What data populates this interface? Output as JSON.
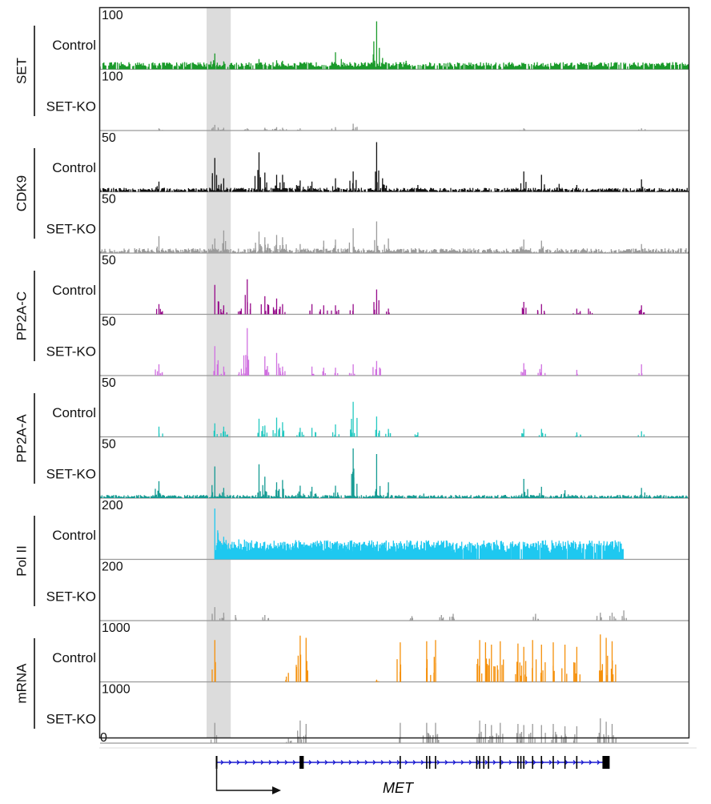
{
  "chart_data": {
    "type": "genome-browser-tracks",
    "title": "",
    "tracks": [
      {
        "group": "SET",
        "label": "Control",
        "scale": "100",
        "color": "#1a9a2a",
        "peaks": [
          [
            0.02,
            9
          ],
          [
            0.07,
            8
          ],
          [
            0.1,
            10
          ],
          [
            0.13,
            12
          ],
          [
            0.195,
            28
          ],
          [
            0.21,
            14
          ],
          [
            0.27,
            18
          ],
          [
            0.3,
            16
          ],
          [
            0.31,
            15
          ],
          [
            0.4,
            30
          ],
          [
            0.41,
            18
          ],
          [
            0.47,
            85
          ],
          [
            0.48,
            20
          ],
          [
            0.52,
            15
          ],
          [
            0.56,
            12
          ],
          [
            0.62,
            10
          ],
          [
            0.66,
            11
          ],
          [
            0.7,
            12
          ],
          [
            0.75,
            10
          ],
          [
            0.8,
            11
          ],
          [
            0.85,
            12
          ],
          [
            0.9,
            10
          ],
          [
            0.95,
            9
          ]
        ],
        "baseline": [
          3,
          9
        ]
      },
      {
        "group": "SET",
        "label": "SET-KO",
        "scale": "100",
        "color": "#9a9a9a",
        "peaks": [
          [
            0.1,
            4
          ],
          [
            0.195,
            10
          ],
          [
            0.21,
            5
          ],
          [
            0.25,
            4
          ],
          [
            0.28,
            5
          ],
          [
            0.3,
            6
          ],
          [
            0.31,
            5
          ],
          [
            0.34,
            4
          ],
          [
            0.4,
            6
          ],
          [
            0.43,
            12
          ],
          [
            0.72,
            4
          ],
          [
            0.92,
            4
          ]
        ],
        "baseline": [
          0,
          0
        ]
      },
      {
        "group": "CDK9",
        "label": "Control",
        "scale": "50",
        "color": "#111111",
        "peaks": [
          [
            0.1,
            18
          ],
          [
            0.195,
            60
          ],
          [
            0.21,
            24
          ],
          [
            0.27,
            70
          ],
          [
            0.28,
            34
          ],
          [
            0.3,
            30
          ],
          [
            0.31,
            30
          ],
          [
            0.34,
            20
          ],
          [
            0.36,
            18
          ],
          [
            0.4,
            24
          ],
          [
            0.43,
            36
          ],
          [
            0.47,
            88
          ],
          [
            0.48,
            24
          ],
          [
            0.54,
            12
          ],
          [
            0.72,
            36
          ],
          [
            0.75,
            30
          ],
          [
            0.78,
            14
          ],
          [
            0.81,
            12
          ],
          [
            0.92,
            22
          ]
        ],
        "baseline": [
          1,
          5
        ]
      },
      {
        "group": "CDK9",
        "label": "SET-KO",
        "scale": "50",
        "color": "#9a9a9a",
        "peaks": [
          [
            0.1,
            30
          ],
          [
            0.195,
            26
          ],
          [
            0.21,
            40
          ],
          [
            0.27,
            38
          ],
          [
            0.28,
            28
          ],
          [
            0.3,
            32
          ],
          [
            0.31,
            28
          ],
          [
            0.34,
            16
          ],
          [
            0.38,
            22
          ],
          [
            0.4,
            24
          ],
          [
            0.43,
            44
          ],
          [
            0.47,
            56
          ],
          [
            0.49,
            26
          ],
          [
            0.72,
            24
          ],
          [
            0.75,
            22
          ],
          [
            0.92,
            16
          ]
        ],
        "baseline": [
          1,
          6
        ]
      },
      {
        "group": "PP2A-C",
        "label": "Control",
        "scale": "50",
        "color": "#960a8a",
        "peaks": [
          [
            0.1,
            18
          ],
          [
            0.195,
            52
          ],
          [
            0.21,
            16
          ],
          [
            0.24,
            10
          ],
          [
            0.25,
            62
          ],
          [
            0.28,
            32
          ],
          [
            0.3,
            28
          ],
          [
            0.31,
            18
          ],
          [
            0.36,
            18
          ],
          [
            0.38,
            16
          ],
          [
            0.4,
            16
          ],
          [
            0.43,
            18
          ],
          [
            0.47,
            44
          ],
          [
            0.49,
            10
          ],
          [
            0.72,
            22
          ],
          [
            0.75,
            18
          ],
          [
            0.81,
            10
          ],
          [
            0.83,
            10
          ],
          [
            0.92,
            16
          ]
        ],
        "baseline": [
          0,
          0
        ]
      },
      {
        "group": "PP2A-C",
        "label": "SET-KO",
        "scale": "50",
        "color": "#d070e0",
        "peaks": [
          [
            0.1,
            20
          ],
          [
            0.195,
            52
          ],
          [
            0.21,
            16
          ],
          [
            0.24,
            12
          ],
          [
            0.25,
            84
          ],
          [
            0.28,
            34
          ],
          [
            0.3,
            40
          ],
          [
            0.31,
            16
          ],
          [
            0.36,
            16
          ],
          [
            0.38,
            14
          ],
          [
            0.4,
            14
          ],
          [
            0.43,
            20
          ],
          [
            0.47,
            26
          ],
          [
            0.72,
            22
          ],
          [
            0.75,
            20
          ],
          [
            0.81,
            10
          ],
          [
            0.92,
            20
          ]
        ],
        "baseline": [
          0,
          0
        ]
      },
      {
        "group": "PP2A-A",
        "label": "Control",
        "scale": "50",
        "color": "#22c8c0",
        "peaks": [
          [
            0.1,
            18
          ],
          [
            0.195,
            24
          ],
          [
            0.21,
            18
          ],
          [
            0.27,
            32
          ],
          [
            0.28,
            20
          ],
          [
            0.3,
            34
          ],
          [
            0.31,
            26
          ],
          [
            0.34,
            16
          ],
          [
            0.36,
            16
          ],
          [
            0.4,
            22
          ],
          [
            0.43,
            28
          ],
          [
            0.43,
            62
          ],
          [
            0.47,
            36
          ],
          [
            0.49,
            14
          ],
          [
            0.54,
            8
          ],
          [
            0.72,
            14
          ],
          [
            0.75,
            14
          ],
          [
            0.81,
            8
          ],
          [
            0.92,
            10
          ]
        ],
        "baseline": [
          0,
          0
        ]
      },
      {
        "group": "PP2A-A",
        "label": "SET-KO",
        "scale": "50",
        "color": "#139a92",
        "peaks": [
          [
            0.1,
            30
          ],
          [
            0.195,
            56
          ],
          [
            0.21,
            18
          ],
          [
            0.27,
            60
          ],
          [
            0.28,
            38
          ],
          [
            0.3,
            28
          ],
          [
            0.31,
            32
          ],
          [
            0.34,
            22
          ],
          [
            0.36,
            20
          ],
          [
            0.4,
            22
          ],
          [
            0.43,
            62
          ],
          [
            0.43,
            88
          ],
          [
            0.47,
            78
          ],
          [
            0.49,
            28
          ],
          [
            0.55,
            8
          ],
          [
            0.72,
            34
          ],
          [
            0.75,
            20
          ],
          [
            0.79,
            14
          ],
          [
            0.92,
            18
          ]
        ],
        "baseline": [
          1,
          4
        ]
      },
      {
        "group": "Pol II",
        "label": "Control",
        "scale": "200",
        "color": "#1ec8f0",
        "peaks": [
          [
            0.195,
            90
          ],
          [
            0.21,
            40
          ]
        ],
        "baseline": [
          8,
          22
        ],
        "region": [
          0.195,
          0.89
        ]
      },
      {
        "group": "Pol II",
        "label": "SET-KO",
        "scale": "200",
        "color": "#9a9a9a",
        "peaks": [
          [
            0.195,
            24
          ],
          [
            0.21,
            14
          ],
          [
            0.23,
            10
          ],
          [
            0.28,
            10
          ],
          [
            0.53,
            8
          ],
          [
            0.58,
            10
          ],
          [
            0.6,
            12
          ],
          [
            0.74,
            12
          ],
          [
            0.85,
            14
          ],
          [
            0.87,
            14
          ],
          [
            0.89,
            18
          ]
        ],
        "baseline": [
          0,
          0
        ]
      },
      {
        "group": "mRNA",
        "label": "Control",
        "scale": "1000",
        "color": "#f5900a",
        "peaks": [
          [
            0.195,
            74
          ],
          [
            0.32,
            16
          ],
          [
            0.34,
            82
          ],
          [
            0.35,
            78
          ],
          [
            0.47,
            4
          ],
          [
            0.51,
            70
          ],
          [
            0.555,
            72
          ],
          [
            0.57,
            74
          ],
          [
            0.645,
            74
          ],
          [
            0.655,
            70
          ],
          [
            0.665,
            66
          ],
          [
            0.68,
            72
          ],
          [
            0.71,
            68
          ],
          [
            0.72,
            62
          ],
          [
            0.735,
            74
          ],
          [
            0.75,
            66
          ],
          [
            0.77,
            70
          ],
          [
            0.79,
            66
          ],
          [
            0.81,
            62
          ],
          [
            0.85,
            84
          ],
          [
            0.86,
            78
          ],
          [
            0.87,
            72
          ]
        ],
        "baseline": [
          0,
          0
        ]
      },
      {
        "group": "mRNA",
        "label": "SET-KO",
        "scale": "1000",
        "color": "#9a9a9a",
        "peaks": [
          [
            0.195,
            36
          ],
          [
            0.32,
            8
          ],
          [
            0.34,
            40
          ],
          [
            0.35,
            34
          ],
          [
            0.51,
            36
          ],
          [
            0.555,
            36
          ],
          [
            0.57,
            36
          ],
          [
            0.645,
            40
          ],
          [
            0.655,
            34
          ],
          [
            0.665,
            32
          ],
          [
            0.68,
            36
          ],
          [
            0.71,
            34
          ],
          [
            0.72,
            32
          ],
          [
            0.735,
            34
          ],
          [
            0.75,
            32
          ],
          [
            0.77,
            34
          ],
          [
            0.79,
            30
          ],
          [
            0.81,
            30
          ],
          [
            0.85,
            44
          ],
          [
            0.86,
            38
          ],
          [
            0.87,
            34
          ]
        ],
        "baseline": [
          0,
          0
        ]
      }
    ],
    "mrna_ko_zero_label": "0",
    "groups": [
      "SET",
      "CDK9",
      "PP2A-C",
      "PP2A-A",
      "Pol II",
      "mRNA"
    ],
    "highlight_region": [
      0.181,
      0.222
    ],
    "gene": {
      "name": "MET",
      "start": 0.198,
      "end": 0.859,
      "exons": [
        0.34,
        0.345,
        0.51,
        0.555,
        0.56,
        0.57,
        0.64,
        0.645,
        0.652,
        0.66,
        0.68,
        0.71,
        0.715,
        0.72,
        0.735,
        0.75,
        0.77,
        0.79,
        0.81
      ],
      "utr_start": 0.198,
      "utr_end": 0.855,
      "strand": "+",
      "colors": {
        "line": "#1a1ad0",
        "exon": "#000000"
      }
    },
    "colors": {
      "highlight": "#dcdcdc",
      "frame": "#222222",
      "separator": "#999999"
    }
  }
}
